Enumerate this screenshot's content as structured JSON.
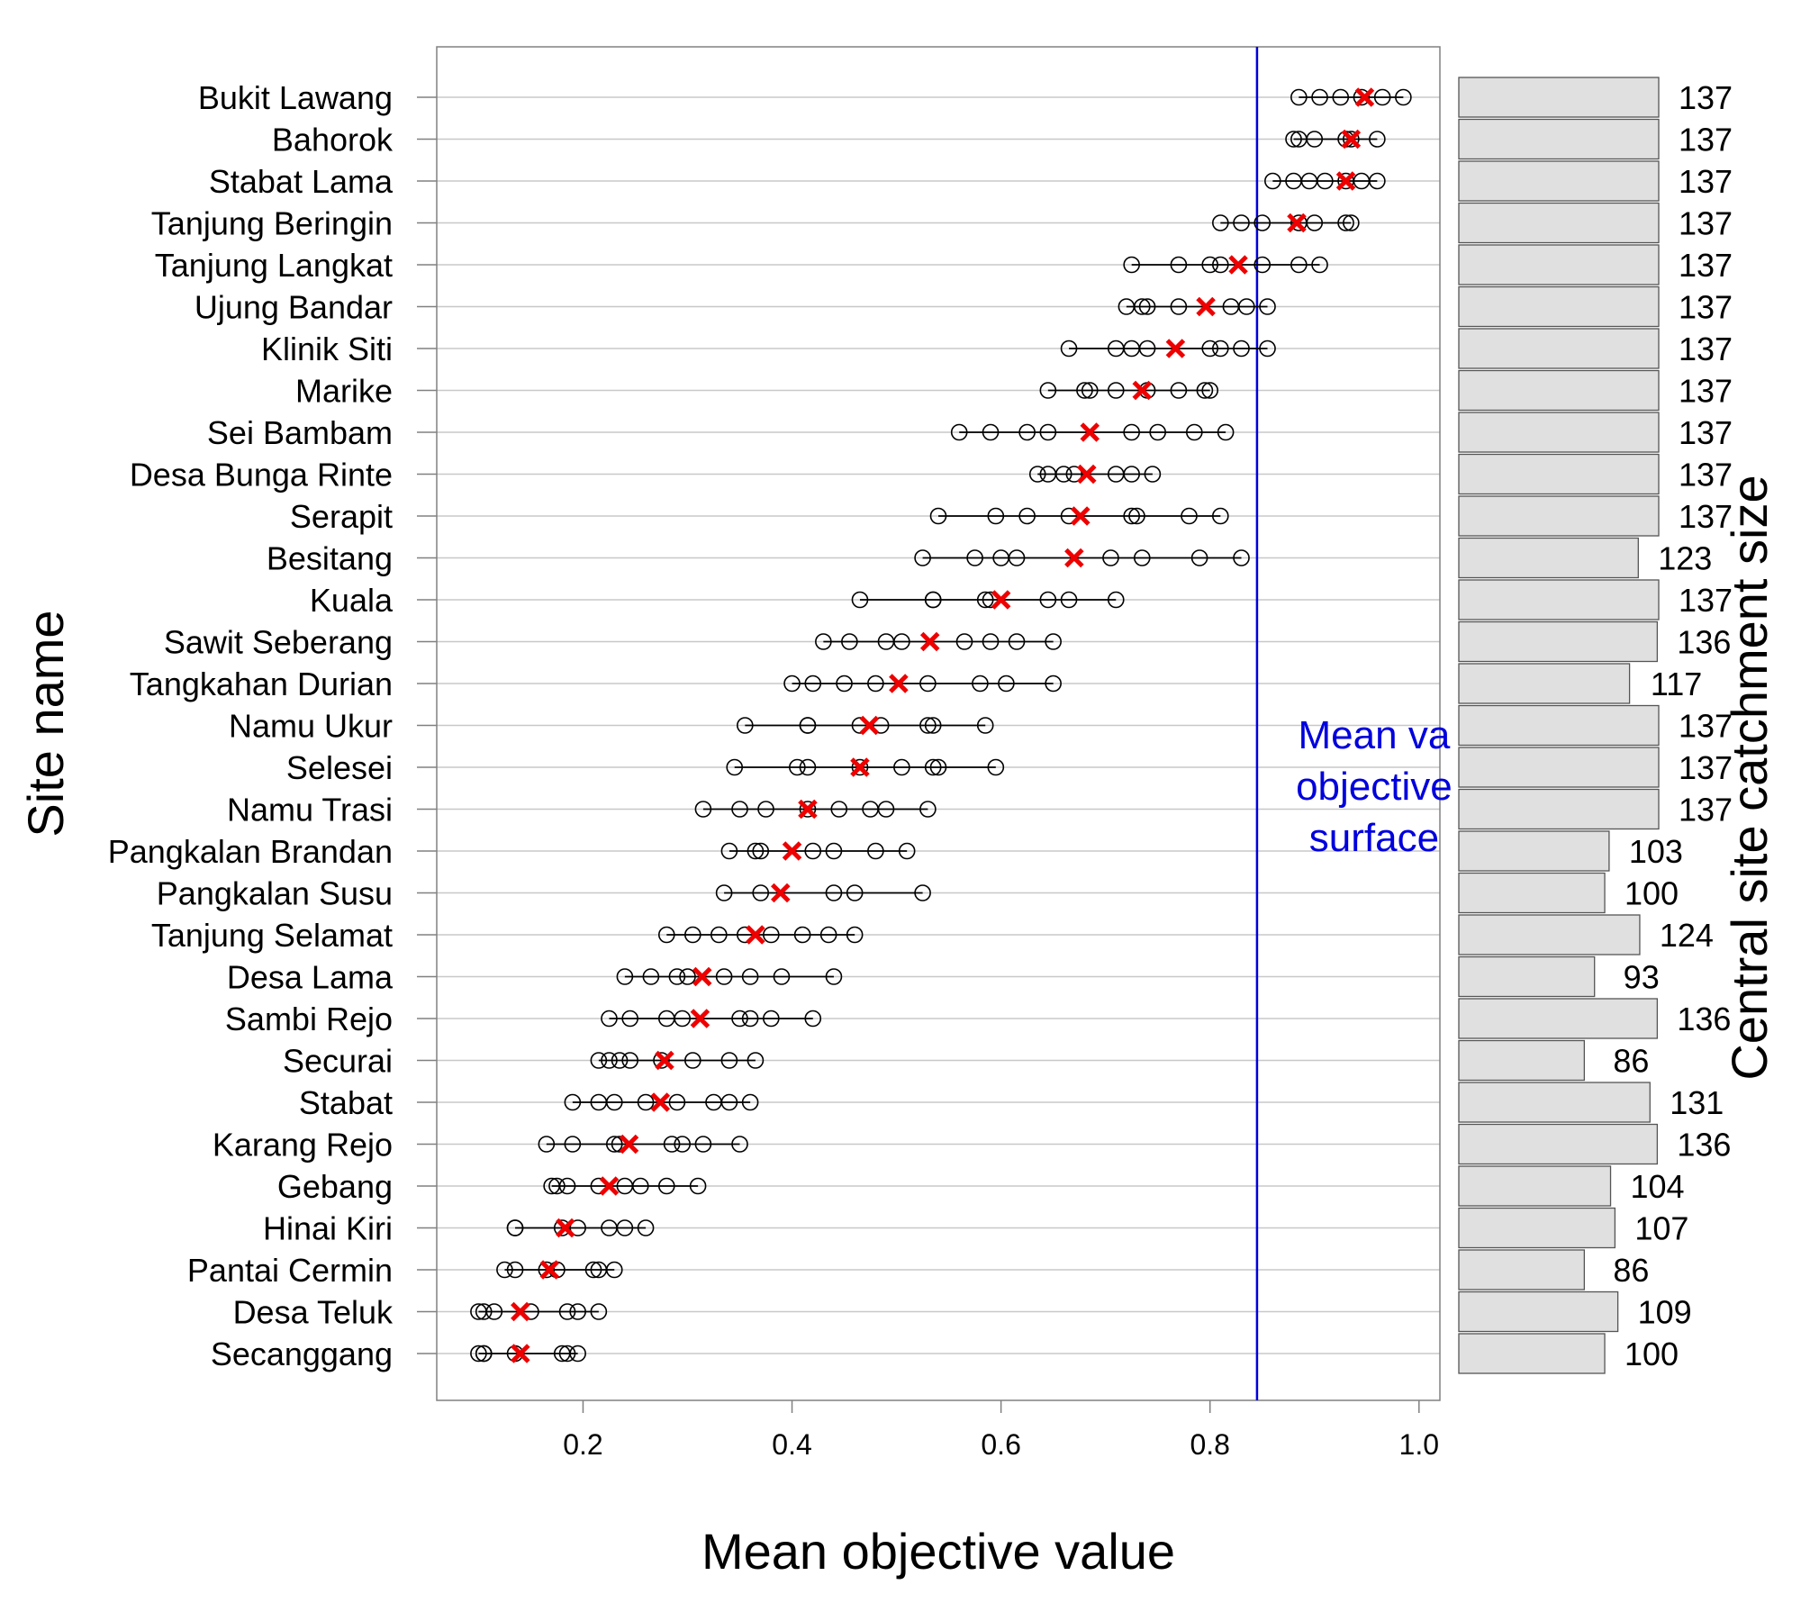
{
  "chart_data": [
    {
      "type": "scatter",
      "title": "",
      "xlabel": "Mean objective value",
      "ylabel": "Site name",
      "xlim": [
        0.06,
        1.02
      ],
      "xticks": [
        "0.2",
        "0.4",
        "0.6",
        "0.8",
        "1.0"
      ],
      "xtick_values": [
        0.2,
        0.4,
        0.6,
        0.8,
        1.0
      ],
      "grid": "horizontal",
      "reference_line": {
        "x": 0.845,
        "label": "Mean va objective surface",
        "label_lines": [
          "Mean va",
          "objective",
          "surface"
        ],
        "color": "#0000dd"
      },
      "categories": [
        "Bukit Lawang",
        "Bahorok",
        "Stabat Lama",
        "Tanjung Beringin",
        "Tanjung Langkat",
        "Ujung Bandar",
        "Klinik Siti",
        "Marike",
        "Sei Bambam",
        "Desa Bunga Rinte",
        "Serapit",
        "Besitang",
        "Kuala",
        "Sawit Seberang",
        "Tangkahan Durian",
        "Namu Ukur",
        "Selesei",
        "Namu Trasi",
        "Pangkalan Brandan",
        "Pangkalan Susu",
        "Tanjung Selamat",
        "Desa Lama",
        "Sambi Rejo",
        "Securai",
        "Stabat",
        "Karang Rejo",
        "Gebang",
        "Hinai Kiri",
        "Pantai Cermin",
        "Desa Teluk",
        "Secanggang"
      ],
      "series": [
        {
          "name": "",
          "marker": "open circle",
          "color": "#000000",
          "values": [
            [
              0.885,
              0.905,
              0.925,
              0.945,
              0.965,
              0.985
            ],
            [
              0.88,
              0.885,
              0.9,
              0.93,
              0.935,
              0.96
            ],
            [
              0.86,
              0.88,
              0.895,
              0.91,
              0.93,
              0.945,
              0.96
            ],
            [
              0.81,
              0.83,
              0.85,
              0.885,
              0.9,
              0.93,
              0.935
            ],
            [
              0.725,
              0.77,
              0.8,
              0.81,
              0.85,
              0.885,
              0.905
            ],
            [
              0.72,
              0.735,
              0.74,
              0.77,
              0.82,
              0.835,
              0.855
            ],
            [
              0.665,
              0.71,
              0.725,
              0.74,
              0.8,
              0.81,
              0.83,
              0.855
            ],
            [
              0.645,
              0.68,
              0.685,
              0.71,
              0.74,
              0.77,
              0.795,
              0.8
            ],
            [
              0.56,
              0.59,
              0.625,
              0.645,
              0.725,
              0.75,
              0.785,
              0.815
            ],
            [
              0.635,
              0.645,
              0.66,
              0.67,
              0.71,
              0.725,
              0.745
            ],
            [
              0.54,
              0.595,
              0.625,
              0.665,
              0.725,
              0.73,
              0.78,
              0.81
            ],
            [
              0.525,
              0.575,
              0.6,
              0.615,
              0.705,
              0.735,
              0.79,
              0.83
            ],
            [
              0.465,
              0.535,
              0.535,
              0.585,
              0.59,
              0.645,
              0.665,
              0.71
            ],
            [
              0.43,
              0.455,
              0.49,
              0.505,
              0.565,
              0.59,
              0.615,
              0.65
            ],
            [
              0.4,
              0.42,
              0.45,
              0.48,
              0.53,
              0.58,
              0.605,
              0.65
            ],
            [
              0.355,
              0.415,
              0.415,
              0.465,
              0.485,
              0.53,
              0.535,
              0.585
            ],
            [
              0.345,
              0.405,
              0.415,
              0.465,
              0.505,
              0.535,
              0.54,
              0.595
            ],
            [
              0.315,
              0.35,
              0.375,
              0.415,
              0.445,
              0.475,
              0.49,
              0.53
            ],
            [
              0.34,
              0.365,
              0.37,
              0.42,
              0.44,
              0.48,
              0.51
            ],
            [
              0.335,
              0.37,
              0.44,
              0.46,
              0.525
            ],
            [
              0.28,
              0.305,
              0.33,
              0.355,
              0.38,
              0.41,
              0.435,
              0.46
            ],
            [
              0.24,
              0.265,
              0.29,
              0.3,
              0.335,
              0.36,
              0.39,
              0.44
            ],
            [
              0.225,
              0.245,
              0.28,
              0.295,
              0.35,
              0.36,
              0.38,
              0.42
            ],
            [
              0.215,
              0.225,
              0.235,
              0.245,
              0.275,
              0.305,
              0.34,
              0.365
            ],
            [
              0.19,
              0.215,
              0.23,
              0.26,
              0.29,
              0.325,
              0.34,
              0.36
            ],
            [
              0.165,
              0.19,
              0.23,
              0.235,
              0.285,
              0.295,
              0.315,
              0.35
            ],
            [
              0.17,
              0.175,
              0.185,
              0.215,
              0.24,
              0.255,
              0.28,
              0.31
            ],
            [
              0.135,
              0.135,
              0.18,
              0.195,
              0.225,
              0.24,
              0.26
            ],
            [
              0.125,
              0.135,
              0.165,
              0.175,
              0.21,
              0.215,
              0.23
            ],
            [
              0.1,
              0.105,
              0.115,
              0.15,
              0.185,
              0.195,
              0.215
            ],
            [
              0.1,
              0.105,
              0.105,
              0.135,
              0.18,
              0.185,
              0.195
            ]
          ]
        },
        {
          "name": "",
          "marker": "red cross",
          "color": "#ee0000",
          "values": [
            0.948,
            0.935,
            0.93,
            0.883,
            0.827,
            0.796,
            0.767,
            0.735,
            0.685,
            0.682,
            0.676,
            0.67,
            0.6,
            0.532,
            0.502,
            0.474,
            0.465,
            0.415,
            0.4,
            0.389,
            0.365,
            0.314,
            0.312,
            0.278,
            0.274,
            0.244,
            0.225,
            0.183,
            0.168,
            0.14,
            0.14
          ]
        }
      ]
    },
    {
      "type": "bar",
      "orientation": "horizontal",
      "ylabel": "Central site catchment size",
      "categories": [
        "Bukit Lawang",
        "Bahorok",
        "Stabat Lama",
        "Tanjung Beringin",
        "Tanjung Langkat",
        "Ujung Bandar",
        "Klinik Siti",
        "Marike",
        "Sei Bambam",
        "Desa Bunga Rinte",
        "Serapit",
        "Besitang",
        "Kuala",
        "Sawit Seberang",
        "Tangkahan Durian",
        "Namu Ukur",
        "Selesei",
        "Namu Trasi",
        "Pangkalan Brandan",
        "Pangkalan Susu",
        "Tanjung Selamat",
        "Desa Lama",
        "Sambi Rejo",
        "Securai",
        "Stabat",
        "Karang Rejo",
        "Gebang",
        "Hinai Kiri",
        "Pantai Cermin",
        "Desa Teluk",
        "Secanggang"
      ],
      "values": [
        137,
        137,
        137,
        137,
        137,
        137,
        137,
        137,
        137,
        137,
        137,
        123,
        137,
        136,
        117,
        137,
        137,
        137,
        103,
        100,
        124,
        93,
        136,
        86,
        131,
        136,
        104,
        107,
        86,
        109,
        100
      ],
      "bar_color": "#e0e0e0",
      "xlim": [
        0,
        137
      ]
    }
  ]
}
